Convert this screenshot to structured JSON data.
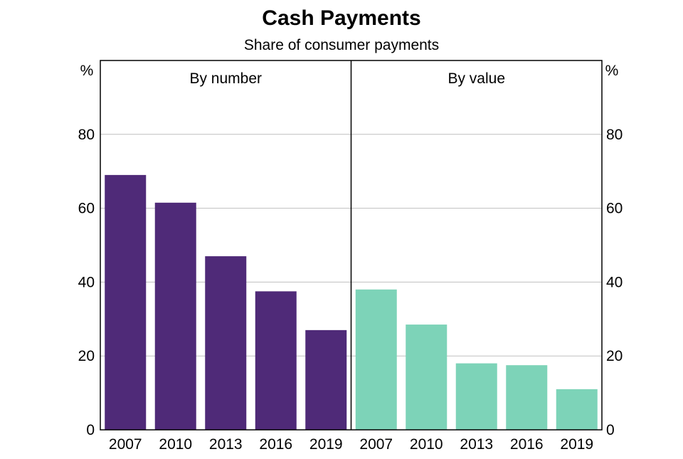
{
  "chart_data": {
    "type": "bar",
    "title": "Cash Payments",
    "subtitle": "Share of consumer payments",
    "y_unit_left": "%",
    "y_unit_right": "%",
    "ylim": [
      0,
      100
    ],
    "yticks": [
      0,
      20,
      40,
      60,
      80
    ],
    "grid": true,
    "panels": [
      {
        "title": "By number",
        "categories": [
          "2007",
          "2010",
          "2013",
          "2016",
          "2019"
        ],
        "values": [
          69,
          61.5,
          47,
          37.5,
          27
        ],
        "color": "#4F2A78"
      },
      {
        "title": "By value",
        "categories": [
          "2007",
          "2010",
          "2013",
          "2016",
          "2019"
        ],
        "values": [
          38,
          28.5,
          18,
          17.5,
          11
        ],
        "color": "#7DD3B8"
      }
    ]
  }
}
